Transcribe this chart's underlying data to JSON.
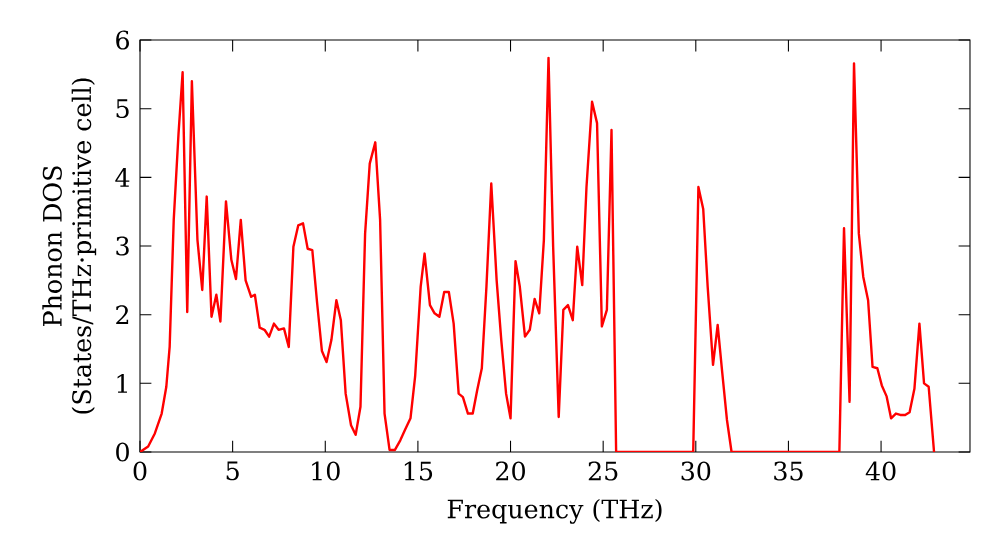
{
  "chart_data": {
    "type": "line",
    "xlabel": "Frequency (THz)",
    "ylabel": "Phonon DOS\n(States/THz·primitive cell)",
    "xlim": [
      0,
      44.8
    ],
    "ylim": [
      0,
      6
    ],
    "xticks": [
      0,
      5,
      10,
      15,
      20,
      25,
      30,
      35,
      40
    ],
    "yticks": [
      0,
      1,
      2,
      3,
      4,
      5,
      6
    ],
    "marker": "none",
    "line_style": "solid",
    "series": [
      {
        "color": "#ff0000",
        "x": [
          0,
          0.44,
          0.8,
          1.17,
          1.42,
          1.6,
          1.82,
          2.08,
          2.3,
          2.55,
          2.8,
          3.1,
          3.36,
          3.6,
          3.86,
          4.12,
          4.34,
          4.64,
          4.93,
          5.18,
          5.44,
          5.7,
          6.0,
          6.2,
          6.46,
          6.72,
          6.97,
          7.23,
          7.48,
          7.77,
          8.03,
          8.28,
          8.54,
          8.8,
          9.05,
          9.3,
          9.56,
          9.82,
          10.07,
          10.33,
          10.6,
          10.84,
          11.1,
          11.39,
          11.64,
          11.9,
          12.15,
          12.4,
          12.7,
          12.96,
          13.2,
          13.47,
          13.76,
          14.05,
          14.3,
          14.6,
          14.85,
          15.15,
          15.36,
          15.65,
          15.9,
          16.16,
          16.42,
          16.67,
          16.93,
          17.2,
          17.43,
          17.7,
          17.96,
          18.2,
          18.45,
          18.7,
          18.96,
          19.25,
          19.5,
          19.76,
          20.0,
          20.27,
          20.5,
          20.78,
          21.04,
          21.3,
          21.55,
          21.8,
          22.05,
          22.3,
          22.6,
          22.85,
          23.1,
          23.36,
          23.6,
          23.87,
          24.1,
          24.4,
          24.67,
          24.93,
          25.2,
          25.45,
          25.7,
          29.86,
          30.14,
          30.4,
          30.64,
          30.93,
          31.18,
          31.43,
          31.68,
          31.93,
          37.75,
          38.0,
          38.3,
          38.54,
          38.8,
          39.04,
          39.3,
          39.54,
          39.8,
          40.04,
          40.3,
          40.54,
          40.8,
          41.04,
          41.3,
          41.54,
          41.8,
          42.07,
          42.32,
          42.57,
          42.86
        ],
        "values": [
          0,
          0.08,
          0.27,
          0.56,
          0.95,
          1.53,
          3.38,
          4.64,
          5.53,
          2.04,
          5.4,
          3.09,
          2.36,
          3.72,
          1.97,
          2.29,
          1.9,
          3.65,
          2.8,
          2.52,
          3.38,
          2.5,
          2.26,
          2.29,
          1.81,
          1.78,
          1.68,
          1.87,
          1.78,
          1.8,
          1.53,
          2.99,
          3.3,
          3.33,
          2.96,
          2.94,
          2.17,
          1.47,
          1.31,
          1.63,
          2.21,
          1.92,
          0.85,
          0.39,
          0.25,
          0.66,
          3.18,
          4.2,
          4.51,
          3.38,
          0.56,
          0.03,
          0.03,
          0.17,
          0.32,
          0.49,
          1.1,
          2.41,
          2.89,
          2.14,
          2.02,
          1.97,
          2.33,
          2.33,
          1.87,
          0.85,
          0.8,
          0.56,
          0.56,
          0.9,
          1.22,
          2.41,
          3.91,
          2.5,
          1.63,
          0.85,
          0.49,
          2.78,
          2.41,
          1.68,
          1.78,
          2.23,
          2.02,
          3.09,
          5.74,
          2.99,
          0.51,
          2.07,
          2.14,
          1.92,
          2.99,
          2.43,
          3.86,
          5.1,
          4.79,
          1.83,
          2.07,
          4.69,
          0,
          0,
          3.86,
          3.54,
          2.41,
          1.27,
          1.85,
          1.15,
          0.47,
          0,
          0,
          3.26,
          0.73,
          5.66,
          3.18,
          2.55,
          2.21,
          1.24,
          1.22,
          0.97,
          0.81,
          0.49,
          0.56,
          0.54,
          0.54,
          0.58,
          0.92,
          1.87,
          1.0,
          0.95,
          0
        ]
      }
    ]
  }
}
